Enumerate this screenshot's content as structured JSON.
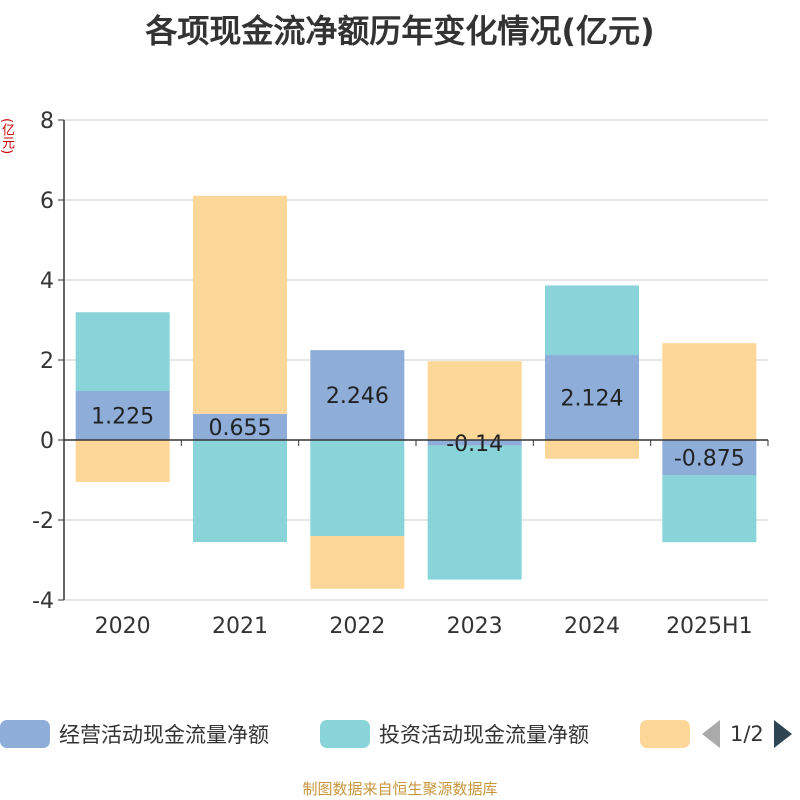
{
  "title": "各项现金流净额历年变化情况(亿元)",
  "unit_label": "(亿元)",
  "source_text": "制图数据来自恒生聚源数据库",
  "pager": {
    "text": "1/2"
  },
  "colors": {
    "operating": "#8eadd9",
    "investing": "#88d4d8",
    "financing": "#fdd798"
  },
  "legend": [
    {
      "label": "经营活动现金流量净额",
      "color": "#8eadd9"
    },
    {
      "label": "投资活动现金流量净额",
      "color": "#88d4d8"
    },
    {
      "label": "",
      "color": "#fdd798"
    }
  ],
  "chart_data": {
    "type": "bar",
    "stacked": true,
    "title": "各项现金流净额历年变化情况(亿元)",
    "ylabel": "(亿元)",
    "ylim": [
      -4,
      8
    ],
    "yticks": [
      -4,
      -2,
      0,
      2,
      4,
      6,
      8
    ],
    "grid": true,
    "legend_position": "bottom",
    "categories": [
      "2020",
      "2021",
      "2022",
      "2023",
      "2024",
      "2025H1"
    ],
    "series": [
      {
        "name": "经营活动现金流量净额",
        "values": [
          1.225,
          0.655,
          2.246,
          -0.14,
          2.124,
          -0.875
        ],
        "labels": [
          "1.225",
          "0.655",
          "2.246",
          "-0.14",
          "2.124",
          "-0.875"
        ]
      },
      {
        "name": "投资活动现金流量净额",
        "values": [
          1.97,
          -2.55,
          -2.4,
          -3.35,
          1.74,
          -1.68
        ]
      },
      {
        "values": [
          -1.05,
          5.45,
          -1.32,
          1.97,
          -0.47,
          2.42
        ]
      }
    ]
  }
}
